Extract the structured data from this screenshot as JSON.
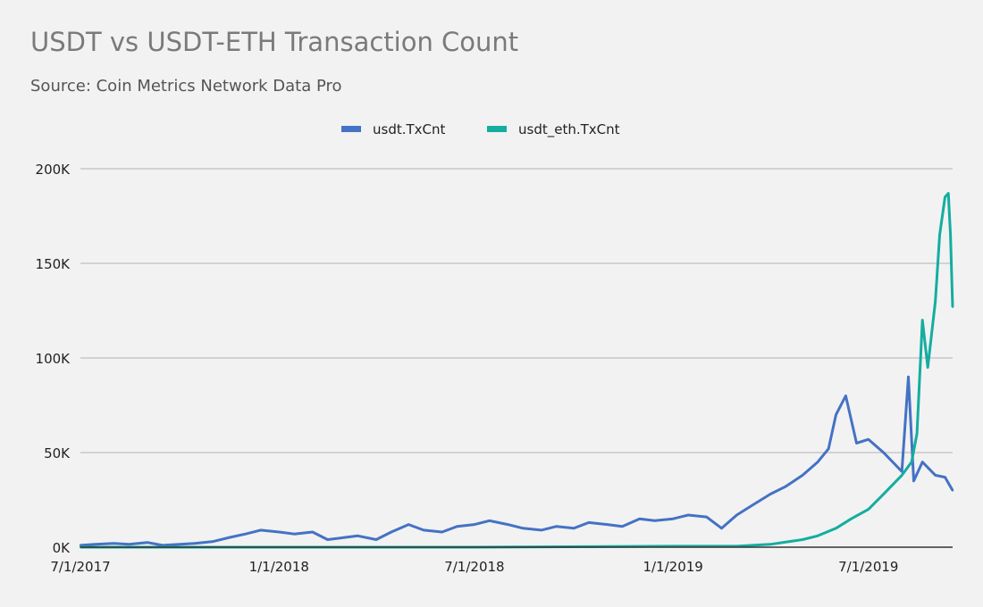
{
  "chart_data": {
    "type": "line",
    "title": "USDT vs USDT-ETH Transaction Count",
    "subtitle": "Source: Coin Metrics Network Data Pro",
    "xlabel": "",
    "ylabel": "",
    "xlim": [
      "2017-07-01",
      "2019-09-17"
    ],
    "ylim": [
      0,
      200000
    ],
    "x_ticks": [
      "2017-07-01",
      "2018-01-01",
      "2018-07-01",
      "2019-01-01",
      "2019-07-01"
    ],
    "x_tick_labels": [
      "7/1/2017",
      "1/1/2018",
      "7/1/2018",
      "1/1/2019",
      "7/1/2019"
    ],
    "y_ticks": [
      0,
      50000,
      100000,
      150000,
      200000
    ],
    "y_tick_labels": [
      "0K",
      "50K",
      "100K",
      "150K",
      "200K"
    ],
    "grid": true,
    "legend": "top-center",
    "series": [
      {
        "name": "usdt.TxCnt",
        "color": "#4472C4",
        "x": [
          "2017-07-01",
          "2017-07-15",
          "2017-08-01",
          "2017-08-15",
          "2017-09-01",
          "2017-09-15",
          "2017-10-01",
          "2017-10-15",
          "2017-11-01",
          "2017-11-15",
          "2017-12-01",
          "2017-12-15",
          "2018-01-01",
          "2018-01-15",
          "2018-02-01",
          "2018-02-15",
          "2018-03-01",
          "2018-03-15",
          "2018-04-01",
          "2018-04-15",
          "2018-05-01",
          "2018-05-15",
          "2018-06-01",
          "2018-06-15",
          "2018-07-01",
          "2018-07-15",
          "2018-08-01",
          "2018-08-15",
          "2018-09-01",
          "2018-09-15",
          "2018-10-01",
          "2018-10-15",
          "2018-11-01",
          "2018-11-15",
          "2018-12-01",
          "2018-12-15",
          "2019-01-01",
          "2019-01-15",
          "2019-02-01",
          "2019-02-15",
          "2019-03-01",
          "2019-03-15",
          "2019-04-01",
          "2019-04-15",
          "2019-05-01",
          "2019-05-15",
          "2019-05-25",
          "2019-06-01",
          "2019-06-10",
          "2019-06-20",
          "2019-07-01",
          "2019-07-15",
          "2019-08-01",
          "2019-08-07",
          "2019-08-12",
          "2019-08-20",
          "2019-09-01",
          "2019-09-10",
          "2019-09-17"
        ],
        "values": [
          1000,
          1500,
          2000,
          1500,
          2500,
          1000,
          1500,
          2000,
          3000,
          5000,
          7000,
          9000,
          8000,
          7000,
          8000,
          4000,
          5000,
          6000,
          4000,
          8000,
          12000,
          9000,
          8000,
          11000,
          12000,
          14000,
          12000,
          10000,
          9000,
          11000,
          10000,
          13000,
          12000,
          11000,
          15000,
          14000,
          15000,
          17000,
          16000,
          10000,
          17000,
          22000,
          28000,
          32000,
          38000,
          45000,
          52000,
          70000,
          80000,
          55000,
          57000,
          50000,
          40000,
          90000,
          35000,
          45000,
          38000,
          37000,
          30000
        ]
      },
      {
        "name": "usdt_eth.TxCnt",
        "color": "#14ADA0",
        "x": [
          "2017-07-01",
          "2018-01-01",
          "2018-07-01",
          "2019-01-01",
          "2019-03-01",
          "2019-04-01",
          "2019-05-01",
          "2019-05-15",
          "2019-06-01",
          "2019-06-15",
          "2019-07-01",
          "2019-07-15",
          "2019-08-01",
          "2019-08-10",
          "2019-08-15",
          "2019-08-20",
          "2019-08-25",
          "2019-09-01",
          "2019-09-05",
          "2019-09-10",
          "2019-09-13",
          "2019-09-15",
          "2019-09-17"
        ],
        "values": [
          0,
          0,
          0,
          500,
          500,
          1500,
          4000,
          6000,
          10000,
          15000,
          20000,
          28000,
          38000,
          45000,
          60000,
          120000,
          95000,
          130000,
          165000,
          185000,
          187000,
          165000,
          127000
        ]
      }
    ]
  }
}
